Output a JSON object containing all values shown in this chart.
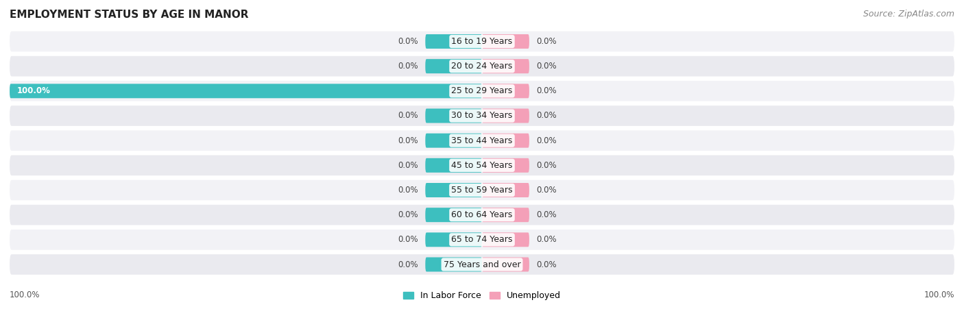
{
  "title": "EMPLOYMENT STATUS BY AGE IN MANOR",
  "source": "Source: ZipAtlas.com",
  "age_groups": [
    "16 to 19 Years",
    "20 to 24 Years",
    "25 to 29 Years",
    "30 to 34 Years",
    "35 to 44 Years",
    "45 to 54 Years",
    "55 to 59 Years",
    "60 to 64 Years",
    "65 to 74 Years",
    "75 Years and over"
  ],
  "labor_force": [
    0.0,
    0.0,
    100.0,
    0.0,
    0.0,
    0.0,
    0.0,
    0.0,
    0.0,
    0.0
  ],
  "unemployed": [
    0.0,
    0.0,
    0.0,
    0.0,
    0.0,
    0.0,
    0.0,
    0.0,
    0.0,
    0.0
  ],
  "labor_color": "#3dbfbf",
  "unemployed_color": "#f4a0b8",
  "row_bg_even": "#f0f0f5",
  "row_bg_odd": "#e8e8ee",
  "xlim_left": -100,
  "xlim_right": 100,
  "title_fontsize": 11,
  "source_fontsize": 9,
  "label_fontsize": 8.5,
  "category_fontsize": 9,
  "legend_fontsize": 9,
  "bar_height": 0.58,
  "stub_labor": 12,
  "stub_unemp": 10,
  "x_left_label": "100.0%",
  "x_right_label": "100.0%"
}
